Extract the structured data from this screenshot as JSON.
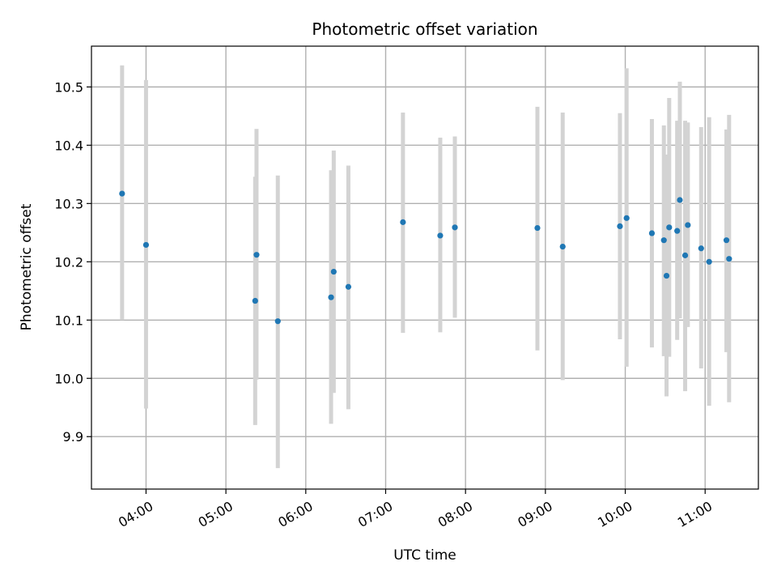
{
  "chart_data": {
    "type": "scatter",
    "title": "Photometric offset variation",
    "xlabel": "UTC time",
    "ylabel": "Photometric offset",
    "x_unit": "UTC time (HH:MM)",
    "xlim": [
      "03:19",
      "11:40"
    ],
    "ylim": [
      9.81,
      10.57
    ],
    "x_ticks": [
      "04:00",
      "05:00",
      "06:00",
      "07:00",
      "08:00",
      "09:00",
      "10:00",
      "11:00"
    ],
    "y_ticks": [
      9.9,
      10.0,
      10.1,
      10.2,
      10.3,
      10.4,
      10.5
    ],
    "grid": true,
    "colors": {
      "point": "#1f77b4",
      "error_bar": "#d3d3d3"
    },
    "points": [
      {
        "x": "03:42",
        "y": 10.317,
        "ylow": 10.1,
        "yhigh": 10.537
      },
      {
        "x": "04:00",
        "y": 10.229,
        "ylow": 9.948,
        "yhigh": 10.512
      },
      {
        "x": "05:22",
        "y": 10.133,
        "ylow": 9.92,
        "yhigh": 10.346
      },
      {
        "x": "05:23",
        "y": 10.212,
        "ylow": 9.998,
        "yhigh": 10.428
      },
      {
        "x": "05:39",
        "y": 10.098,
        "ylow": 9.846,
        "yhigh": 10.348
      },
      {
        "x": "06:19",
        "y": 10.139,
        "ylow": 9.922,
        "yhigh": 10.357
      },
      {
        "x": "06:21",
        "y": 10.183,
        "ylow": 9.975,
        "yhigh": 10.391
      },
      {
        "x": "06:32",
        "y": 10.157,
        "ylow": 9.947,
        "yhigh": 10.365
      },
      {
        "x": "07:13",
        "y": 10.268,
        "ylow": 10.078,
        "yhigh": 10.456
      },
      {
        "x": "07:41",
        "y": 10.245,
        "ylow": 10.079,
        "yhigh": 10.413
      },
      {
        "x": "07:52",
        "y": 10.259,
        "ylow": 10.104,
        "yhigh": 10.415
      },
      {
        "x": "08:54",
        "y": 10.258,
        "ylow": 10.048,
        "yhigh": 10.466
      },
      {
        "x": "09:13",
        "y": 10.226,
        "ylow": 9.997,
        "yhigh": 10.456
      },
      {
        "x": "09:56",
        "y": 10.261,
        "ylow": 10.067,
        "yhigh": 10.455
      },
      {
        "x": "10:01",
        "y": 10.275,
        "ylow": 10.02,
        "yhigh": 10.532
      },
      {
        "x": "10:20",
        "y": 10.249,
        "ylow": 10.053,
        "yhigh": 10.445
      },
      {
        "x": "10:29",
        "y": 10.237,
        "ylow": 10.038,
        "yhigh": 10.434
      },
      {
        "x": "10:31",
        "y": 10.176,
        "ylow": 9.969,
        "yhigh": 10.384
      },
      {
        "x": "10:33",
        "y": 10.259,
        "ylow": 10.037,
        "yhigh": 10.481
      },
      {
        "x": "10:39",
        "y": 10.253,
        "ylow": 10.066,
        "yhigh": 10.442
      },
      {
        "x": "10:41",
        "y": 10.306,
        "ylow": 10.103,
        "yhigh": 10.509
      },
      {
        "x": "10:45",
        "y": 10.211,
        "ylow": 9.978,
        "yhigh": 10.442
      },
      {
        "x": "10:47",
        "y": 10.263,
        "ylow": 10.088,
        "yhigh": 10.439
      },
      {
        "x": "10:57",
        "y": 10.223,
        "ylow": 10.017,
        "yhigh": 10.431
      },
      {
        "x": "11:03",
        "y": 10.2,
        "ylow": 9.953,
        "yhigh": 10.448
      },
      {
        "x": "11:16",
        "y": 10.237,
        "ylow": 10.045,
        "yhigh": 10.427
      },
      {
        "x": "11:18",
        "y": 10.205,
        "ylow": 9.959,
        "yhigh": 10.452
      }
    ]
  }
}
